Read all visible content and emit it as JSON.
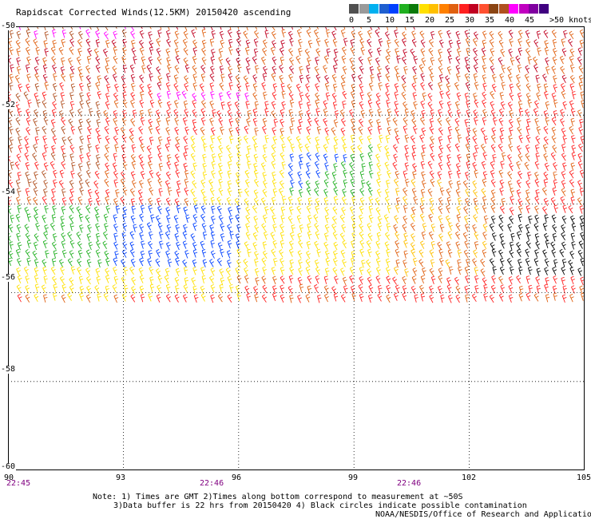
{
  "title": "Rapidscat Corrected Winds(12.5KM) 20150420 ascending",
  "legend": {
    "ticks": [
      "0",
      "5",
      "10",
      "15",
      "20",
      "25",
      "30",
      "35",
      "40",
      "45"
    ],
    "units_label": ">50 knots",
    "colors": [
      "#505050",
      "#9a9a9a",
      "#00b0f0",
      "#1f5fd0",
      "#0040ff",
      "#20b020",
      "#0a7a0a",
      "#ffe000",
      "#ffc000",
      "#ff8000",
      "#e06010",
      "#ff2020",
      "#c00020",
      "#ff5030",
      "#8b4513",
      "#b05020",
      "#ff00ff",
      "#c000c0",
      "#8000a0",
      "#400080"
    ]
  },
  "map": {
    "lon_range": [
      90,
      105
    ],
    "lat_range": [
      -60,
      -50
    ],
    "lon_ticks": [
      "90",
      "93",
      "96",
      "99",
      "102",
      "105"
    ],
    "lat_ticks": [
      "-50",
      "-52",
      "-54",
      "-56",
      "-58",
      "-60"
    ],
    "grid": "dotted",
    "times": [
      "22:45",
      "22:46",
      "22:46"
    ]
  },
  "notes": {
    "line1": "Note: 1) Times are GMT 2)Times along bottom correspond to measurement at ~50S",
    "line2": "3)Data buffer is 22 hrs from 20150420 4) Black circles indicate possible contamination",
    "line3": "NOAA/NESDIS/Office of Research and Applications"
  }
}
